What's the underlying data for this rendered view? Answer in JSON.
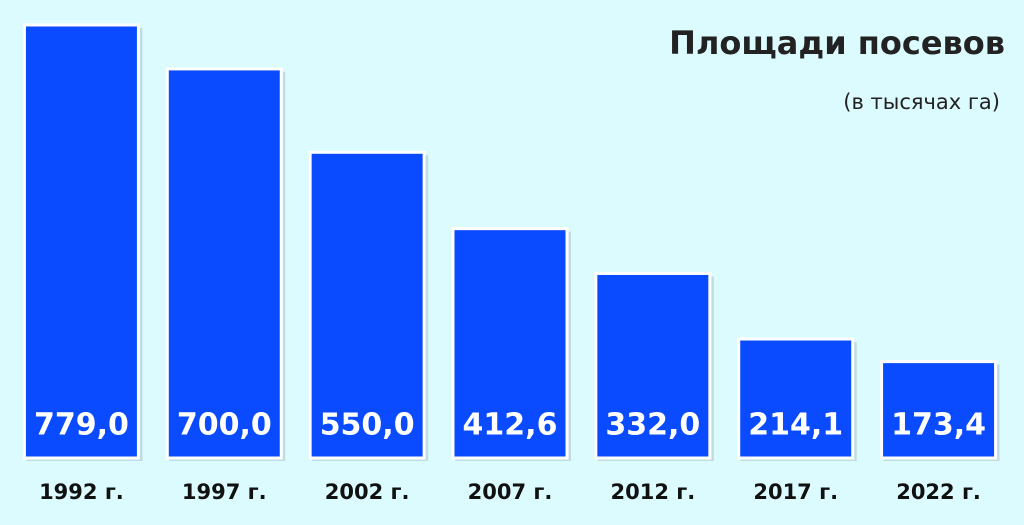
{
  "chart_data": {
    "type": "bar",
    "title": "Площади посевов",
    "subtitle": "(в тысячах га)",
    "categories": [
      "1992 г.",
      "1997 г.",
      "2002 г.",
      "2007 г.",
      "2012 г.",
      "2017 г.",
      "2022 г."
    ],
    "values": [
      779.0,
      700.0,
      550.0,
      412.6,
      332.0,
      214.1,
      173.4
    ],
    "value_labels": [
      "779,0",
      "700,0",
      "550,0",
      "412,6",
      "332,0",
      "214,1",
      "173,4"
    ],
    "color": "#0a4bff"
  }
}
